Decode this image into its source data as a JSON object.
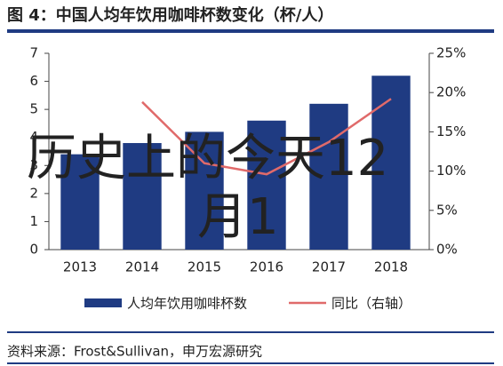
{
  "chart_data": {
    "type": "bar_line",
    "title": "图 4：中国人均年饮用咖啡杯数变化（杯/人）",
    "categories": [
      "2013",
      "2014",
      "2015",
      "2016",
      "2017",
      "2018"
    ],
    "series": [
      {
        "name": "人均年饮用咖啡杯数",
        "color": "#1f3b82",
        "type": "bar",
        "values": [
          3.4,
          3.8,
          4.2,
          4.6,
          5.2,
          6.2
        ]
      },
      {
        "name": "同比（右轴）",
        "color": "#e06a6a",
        "type": "line",
        "axis": "y2",
        "values": [
          null,
          18.8,
          11.0,
          9.6,
          13.7,
          19.2
        ]
      }
    ],
    "ylim": [
      0,
      7
    ],
    "yticks": [
      0,
      1,
      2,
      3,
      4,
      5,
      6,
      7
    ],
    "y2lim": [
      0,
      25
    ],
    "y2ticks": [
      {
        "value": 0,
        "label": "0%"
      },
      {
        "value": 5,
        "label": "5%"
      },
      {
        "value": 10,
        "label": "10%"
      },
      {
        "value": 15,
        "label": "15%"
      },
      {
        "value": 20,
        "label": "20%"
      },
      {
        "value": 25,
        "label": "25%"
      }
    ],
    "source": "资料来源：Frost&Sullivan，申万宏源研究",
    "overlay_lines": [
      "历史上的今天12",
      "月1"
    ]
  }
}
